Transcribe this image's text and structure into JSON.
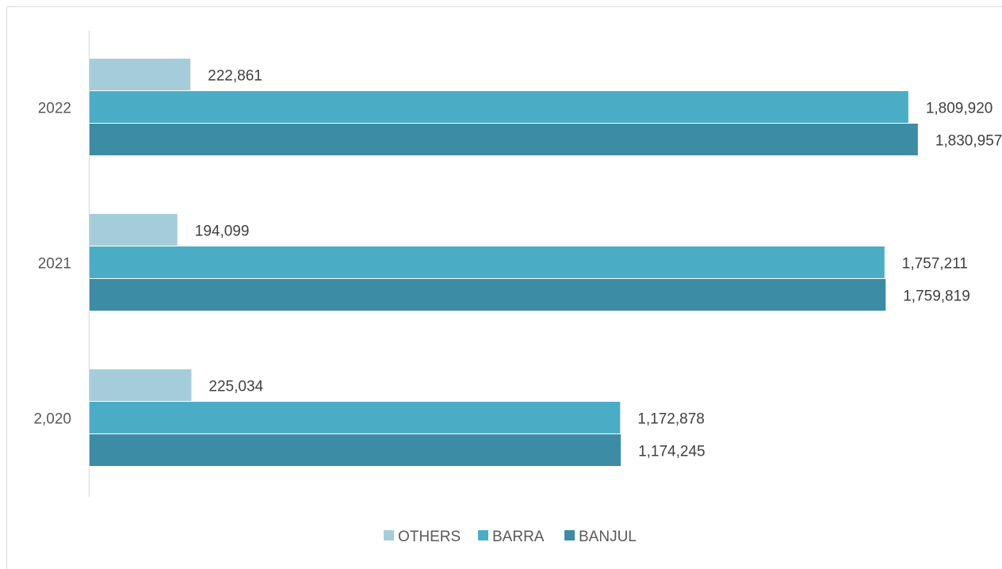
{
  "chart_data": {
    "type": "bar",
    "orientation": "horizontal",
    "title": "",
    "categories": [
      "2,020",
      "2021",
      "2022"
    ],
    "series": [
      {
        "name": "BANJUL",
        "values": [
          1174245,
          1759819,
          1830957
        ],
        "labels": [
          "1,174,245",
          "1,759,819",
          "1,830,957"
        ],
        "color": "#3b8ca4"
      },
      {
        "name": "BARRA",
        "values": [
          1172878,
          1757211,
          1809920
        ],
        "labels": [
          "1,172,878",
          "1,757,211",
          "1,809,920"
        ],
        "color": "#4bacc6"
      },
      {
        "name": "OTHERS",
        "values": [
          225034,
          194099,
          222861
        ],
        "labels": [
          "225,034",
          "194,099",
          "222,861"
        ],
        "color": "#a5cdd9"
      }
    ],
    "legend_order": [
      "OTHERS",
      "BARRA",
      "BANJUL"
    ],
    "legend_position": "bottom",
    "grid": false,
    "xlim": [
      0,
      1840000
    ]
  }
}
